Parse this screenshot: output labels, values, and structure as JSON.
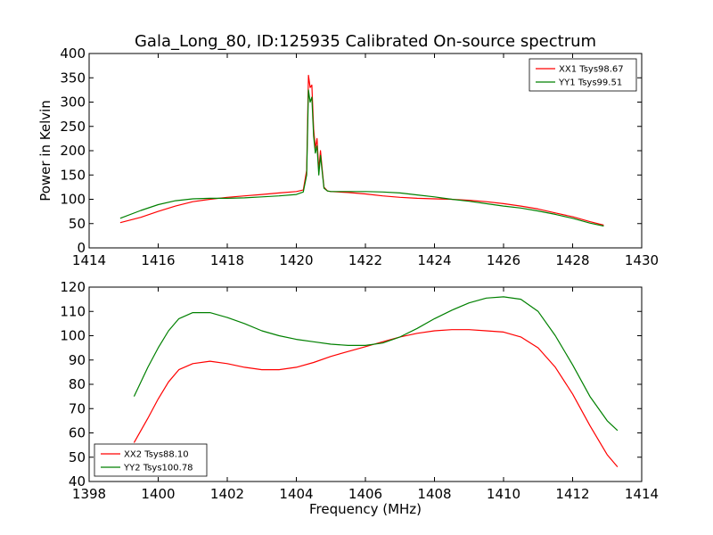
{
  "chart_data": [
    {
      "type": "line",
      "title": "Gala_Long_80, ID:125935 Calibrated On-source spectrum",
      "xlabel": "",
      "ylabel": "Power in Kelvin",
      "xlim": [
        1414,
        1430
      ],
      "ylim": [
        0,
        400
      ],
      "xticks": [
        1414,
        1416,
        1418,
        1420,
        1422,
        1424,
        1426,
        1428,
        1430
      ],
      "yticks": [
        0,
        50,
        100,
        150,
        200,
        250,
        300,
        350,
        400
      ],
      "grid": false,
      "legend_position": "top-right",
      "series": [
        {
          "name": "XX1 Tsys98.67",
          "color": "#ff0000",
          "x": [
            1414.9,
            1415.5,
            1416.0,
            1416.5,
            1417.0,
            1417.5,
            1418.0,
            1418.5,
            1419.0,
            1419.5,
            1420.0,
            1420.2,
            1420.3,
            1420.35,
            1420.4,
            1420.45,
            1420.5,
            1420.55,
            1420.6,
            1420.65,
            1420.7,
            1420.75,
            1420.8,
            1420.9,
            1421.0,
            1421.5,
            1422.0,
            1422.5,
            1423.0,
            1423.5,
            1424.0,
            1424.5,
            1425.0,
            1425.5,
            1426.0,
            1426.5,
            1427.0,
            1427.5,
            1428.0,
            1428.5,
            1428.9
          ],
          "y": [
            52,
            63,
            75,
            86,
            95,
            100,
            104,
            107,
            110,
            113,
            116,
            119,
            160,
            355,
            330,
            335,
            245,
            205,
            225,
            160,
            200,
            160,
            125,
            117,
            116,
            114,
            111,
            107,
            104,
            102,
            101,
            100,
            98,
            95,
            91,
            86,
            80,
            72,
            64,
            54,
            47
          ]
        },
        {
          "name": "YY1 Tsys99.51",
          "color": "#008000",
          "x": [
            1414.9,
            1415.5,
            1416.0,
            1416.5,
            1417.0,
            1417.5,
            1418.0,
            1418.5,
            1419.0,
            1419.5,
            1420.0,
            1420.2,
            1420.3,
            1420.35,
            1420.4,
            1420.45,
            1420.5,
            1420.55,
            1420.6,
            1420.65,
            1420.7,
            1420.75,
            1420.8,
            1420.9,
            1421.0,
            1421.5,
            1422.0,
            1422.5,
            1423.0,
            1423.5,
            1424.0,
            1424.5,
            1425.0,
            1425.5,
            1426.0,
            1426.5,
            1427.0,
            1427.5,
            1428.0,
            1428.5,
            1428.9
          ],
          "y": [
            61,
            77,
            89,
            97,
            101,
            102,
            102,
            103,
            105,
            107,
            110,
            115,
            150,
            325,
            300,
            310,
            230,
            195,
            210,
            150,
            190,
            155,
            123,
            117,
            116,
            116,
            116,
            115,
            113,
            109,
            105,
            100,
            96,
            91,
            86,
            82,
            76,
            69,
            61,
            51,
            45
          ]
        }
      ]
    },
    {
      "type": "line",
      "title": "",
      "xlabel": "Frequency (MHz)",
      "ylabel": "",
      "xlim": [
        1398,
        1414
      ],
      "ylim": [
        40,
        120
      ],
      "xticks": [
        1398,
        1400,
        1402,
        1404,
        1406,
        1408,
        1410,
        1412,
        1414
      ],
      "yticks": [
        40,
        50,
        60,
        70,
        80,
        90,
        100,
        110,
        120
      ],
      "grid": false,
      "legend_position": "bottom-left",
      "series": [
        {
          "name": "XX2 Tsys88.10",
          "color": "#ff0000",
          "x": [
            1399.3,
            1399.7,
            1400.0,
            1400.3,
            1400.6,
            1401.0,
            1401.5,
            1402.0,
            1402.5,
            1403.0,
            1403.5,
            1404.0,
            1404.5,
            1405.0,
            1405.5,
            1406.0,
            1406.5,
            1407.0,
            1407.5,
            1408.0,
            1408.5,
            1409.0,
            1409.5,
            1410.0,
            1410.5,
            1411.0,
            1411.5,
            1412.0,
            1412.5,
            1413.0,
            1413.3
          ],
          "y": [
            56,
            66,
            74,
            81,
            86,
            88.5,
            89.5,
            88.5,
            87,
            86,
            86,
            87,
            89,
            91.5,
            93.5,
            95.5,
            97.5,
            99.5,
            101,
            102,
            102.5,
            102.5,
            102,
            101.5,
            99.5,
            95,
            87,
            76,
            63,
            51,
            46
          ]
        },
        {
          "name": "YY2 Tsys100.78",
          "color": "#008000",
          "x": [
            1399.3,
            1399.7,
            1400.0,
            1400.3,
            1400.6,
            1401.0,
            1401.5,
            1402.0,
            1402.5,
            1403.0,
            1403.5,
            1404.0,
            1404.5,
            1405.0,
            1405.5,
            1406.0,
            1406.5,
            1407.0,
            1407.5,
            1408.0,
            1408.5,
            1409.0,
            1409.5,
            1410.0,
            1410.5,
            1411.0,
            1411.5,
            1412.0,
            1412.5,
            1413.0,
            1413.3
          ],
          "y": [
            75,
            87,
            95,
            102,
            107,
            109.5,
            109.5,
            107.5,
            105,
            102,
            100,
            98.5,
            97.5,
            96.5,
            96,
            96,
            97,
            99.5,
            103,
            107,
            110.5,
            113.5,
            115.5,
            116,
            115,
            110,
            100,
            88,
            75,
            65,
            61
          ]
        }
      ]
    }
  ]
}
